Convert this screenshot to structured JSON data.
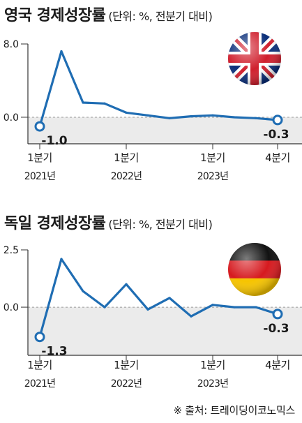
{
  "charts": [
    {
      "title": "영국 경제성장률",
      "unit": "(단위: %, 전분기 대비)",
      "flag": "uk-flag",
      "chart_data": {
        "type": "line",
        "x": [
          "2021Q1",
          "2021Q2",
          "2021Q3",
          "2021Q4",
          "2022Q1",
          "2022Q2",
          "2022Q3",
          "2022Q4",
          "2023Q1",
          "2023Q2",
          "2023Q3",
          "2023Q4"
        ],
        "values": [
          -1.0,
          7.2,
          1.6,
          1.5,
          0.5,
          0.2,
          -0.1,
          0.1,
          0.2,
          0.0,
          -0.1,
          -0.3
        ],
        "yticks": [
          8.0,
          0.0
        ],
        "ytick_labels": [
          "8.0",
          "0.0"
        ],
        "ylim": [
          -2.9,
          8.0
        ],
        "grid": false,
        "labeled_points": [
          {
            "index": 0,
            "label": "-1.0"
          },
          {
            "index": 11,
            "label": "-0.3"
          }
        ],
        "xtick_labels": [
          {
            "index": 0,
            "line1": "1분기",
            "line2": "2021년"
          },
          {
            "index": 4,
            "line1": "1분기",
            "line2": "2022년"
          },
          {
            "index": 8,
            "line1": "1분기",
            "line2": "2023년"
          },
          {
            "index": 11,
            "line1": "4분기",
            "line2": ""
          }
        ]
      }
    },
    {
      "title": "독일 경제성장률",
      "unit": "(단위: %, 전분기 대비)",
      "flag": "germany-flag",
      "chart_data": {
        "type": "line",
        "x": [
          "2021Q1",
          "2021Q2",
          "2021Q3",
          "2021Q4",
          "2022Q1",
          "2022Q2",
          "2022Q3",
          "2022Q4",
          "2023Q1",
          "2023Q2",
          "2023Q3",
          "2023Q4"
        ],
        "values": [
          -1.3,
          2.1,
          0.7,
          0.0,
          1.0,
          -0.1,
          0.4,
          -0.4,
          0.1,
          0.0,
          0.0,
          -0.3
        ],
        "yticks": [
          2.5,
          0.0
        ],
        "ytick_labels": [
          "2.5",
          "0.0"
        ],
        "ylim": [
          -2.1,
          2.5
        ],
        "grid": false,
        "labeled_points": [
          {
            "index": 0,
            "label": "-1.3"
          },
          {
            "index": 11,
            "label": "-0.3"
          }
        ],
        "xtick_labels": [
          {
            "index": 0,
            "line1": "1분기",
            "line2": "2021년"
          },
          {
            "index": 4,
            "line1": "1분기",
            "line2": "2022년"
          },
          {
            "index": 8,
            "line1": "1분기",
            "line2": "2023년"
          },
          {
            "index": 11,
            "line1": "4분기",
            "line2": ""
          }
        ]
      }
    }
  ],
  "colors": {
    "line": "#1f6db3",
    "negative_band": "#ebebeb",
    "axis": "#333333",
    "text": "#1a1a1a"
  },
  "source": "※ 출처: 트레이딩이코노믹스"
}
